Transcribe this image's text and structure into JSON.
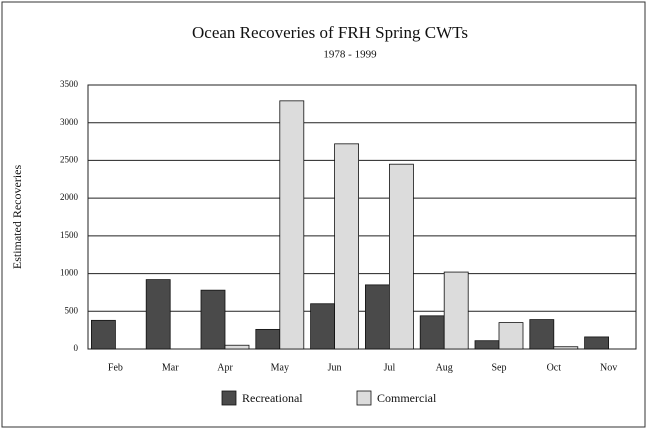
{
  "chart_data": {
    "type": "bar",
    "title": "Ocean Recoveries of FRH Spring CWTs",
    "subtitle": "1978 - 1999",
    "y_label": "Estimated Recoveries",
    "categories": [
      "Feb",
      "Mar",
      "Apr",
      "May",
      "Jun",
      "Jul",
      "Aug",
      "Sep",
      "Oct",
      "Nov"
    ],
    "series": [
      {
        "name": "Recreational",
        "color": "#4a4a4a",
        "values": [
          380,
          920,
          780,
          260,
          600,
          850,
          440,
          110,
          390,
          160
        ]
      },
      {
        "name": "Commercial",
        "color": "#dcdcdc",
        "values": [
          0,
          0,
          50,
          3290,
          2720,
          2450,
          1020,
          350,
          30,
          0
        ]
      }
    ],
    "ylim": [
      0,
      3500
    ],
    "yticks": [
      0,
      500,
      1000,
      1500,
      2000,
      2500,
      3000,
      3500
    ],
    "grid": true,
    "legend": "bottom"
  }
}
